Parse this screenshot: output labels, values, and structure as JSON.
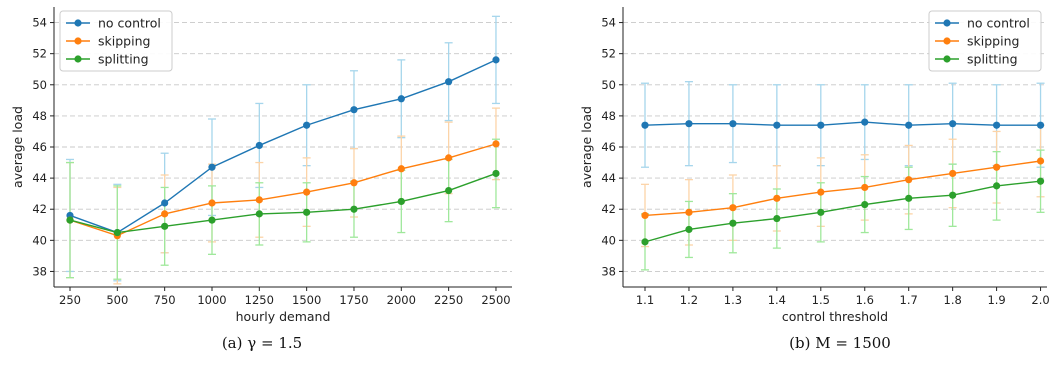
{
  "chart_data": [
    {
      "type": "line",
      "caption": "(a) γ = 1.5",
      "xlabel": "hourly demand",
      "ylabel": "average load",
      "x": [
        "250",
        "500",
        "750",
        "1000",
        "1250",
        "1500",
        "1750",
        "2000",
        "2250",
        "2500"
      ],
      "ylim": [
        37,
        55
      ],
      "yticks": [
        38,
        40,
        42,
        44,
        46,
        48,
        50,
        52,
        54
      ],
      "grid": "horizontal dashed",
      "legend_position": "upper-left",
      "series": [
        {
          "name": "no control",
          "color": "#1f77b4",
          "error_color": "#a6d6ec",
          "values": [
            41.6,
            40.5,
            42.4,
            44.7,
            46.1,
            47.4,
            48.4,
            49.1,
            50.2,
            51.6
          ],
          "errors": [
            3.6,
            3.1,
            3.2,
            3.1,
            2.7,
            2.6,
            2.5,
            2.5,
            2.5,
            2.8
          ]
        },
        {
          "name": "skipping",
          "color": "#ff7f0e",
          "error_color": "#fcd4a8",
          "values": [
            41.3,
            40.3,
            41.7,
            42.4,
            42.6,
            43.1,
            43.7,
            44.6,
            45.3,
            46.2
          ],
          "errors": [
            3.7,
            3.1,
            2.5,
            2.5,
            2.4,
            2.2,
            2.2,
            2.1,
            2.3,
            2.3
          ]
        },
        {
          "name": "splitting",
          "color": "#2ca02c",
          "error_color": "#9fe89b",
          "values": [
            41.3,
            40.5,
            40.9,
            41.3,
            41.7,
            41.8,
            42.0,
            42.5,
            43.2,
            44.3
          ],
          "errors": [
            3.7,
            3.0,
            2.5,
            2.2,
            2.0,
            1.9,
            1.8,
            2.0,
            2.0,
            2.2
          ]
        }
      ]
    },
    {
      "type": "line",
      "caption": "(b) M = 1500",
      "xlabel": "control threshold",
      "ylabel": "average load",
      "x": [
        "1.1",
        "1.2",
        "1.3",
        "1.4",
        "1.5",
        "1.6",
        "1.7",
        "1.8",
        "1.9",
        "2.0"
      ],
      "ylim": [
        37,
        55
      ],
      "yticks": [
        38,
        40,
        42,
        44,
        46,
        48,
        50,
        52,
        54
      ],
      "grid": "horizontal dashed",
      "legend_position": "upper-right",
      "series": [
        {
          "name": "no control",
          "color": "#1f77b4",
          "error_color": "#a6d6ec",
          "values": [
            47.4,
            47.5,
            47.5,
            47.4,
            47.4,
            47.6,
            47.4,
            47.5,
            47.4,
            47.4
          ],
          "errors": [
            2.7,
            2.7,
            2.5,
            2.6,
            2.6,
            2.4,
            2.6,
            2.6,
            2.6,
            2.7
          ]
        },
        {
          "name": "skipping",
          "color": "#ff7f0e",
          "error_color": "#fcd4a8",
          "values": [
            41.6,
            41.8,
            42.1,
            42.7,
            43.1,
            43.4,
            43.9,
            44.3,
            44.7,
            45.1
          ],
          "errors": [
            2.0,
            2.1,
            2.1,
            2.1,
            2.2,
            2.1,
            2.2,
            2.2,
            2.3,
            2.3
          ]
        },
        {
          "name": "splitting",
          "color": "#2ca02c",
          "error_color": "#9fe89b",
          "values": [
            39.9,
            40.7,
            41.1,
            41.4,
            41.8,
            42.3,
            42.7,
            42.9,
            43.5,
            43.8
          ],
          "errors": [
            1.8,
            1.8,
            1.9,
            1.9,
            1.9,
            1.8,
            2.0,
            2.0,
            2.2,
            2.0
          ]
        }
      ]
    }
  ]
}
